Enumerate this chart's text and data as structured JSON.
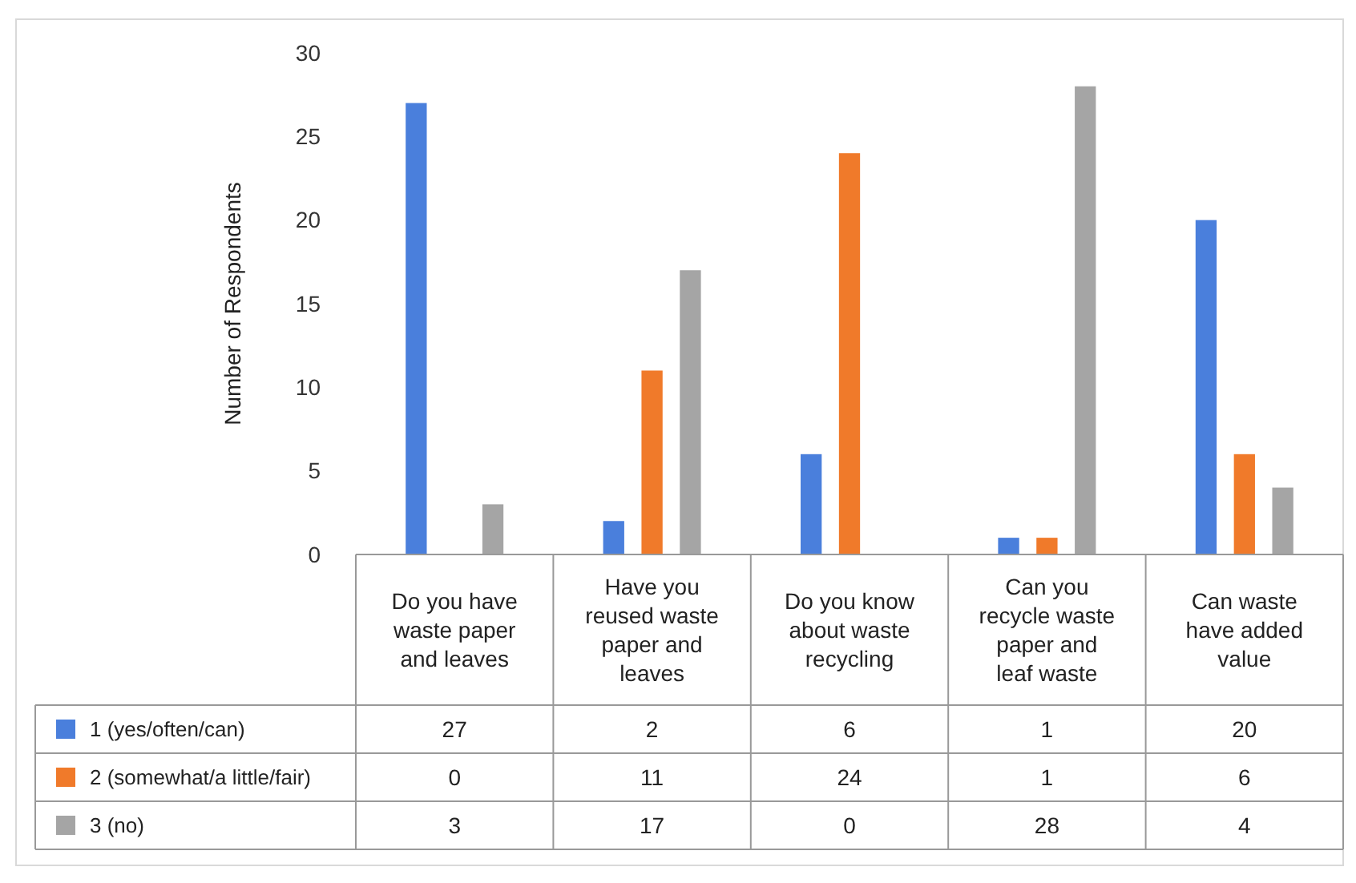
{
  "chart_data": {
    "type": "bar",
    "ylabel": "Number of Respondents",
    "categories": [
      "Do you have waste paper and leaves",
      "Have you reused waste paper and leaves",
      "Do you know about waste recycling",
      "Can you recycle waste paper and leaf waste",
      "Can waste have added value"
    ],
    "series": [
      {
        "name": "1 (yes/often/can)",
        "color": "#4a7fdc",
        "values": [
          27,
          2,
          6,
          1,
          20
        ]
      },
      {
        "name": "2 (somewhat/a little/fair)",
        "color": "#f07a2a",
        "values": [
          0,
          11,
          24,
          1,
          6
        ]
      },
      {
        "name": "3 (no)",
        "color": "#a5a5a5",
        "values": [
          3,
          17,
          0,
          28,
          4
        ]
      }
    ],
    "ylim": [
      0,
      30
    ],
    "yticks": [
      0,
      5,
      10,
      15,
      20,
      25,
      30
    ],
    "grid": false,
    "legend": "bottom",
    "data_labels": true
  }
}
